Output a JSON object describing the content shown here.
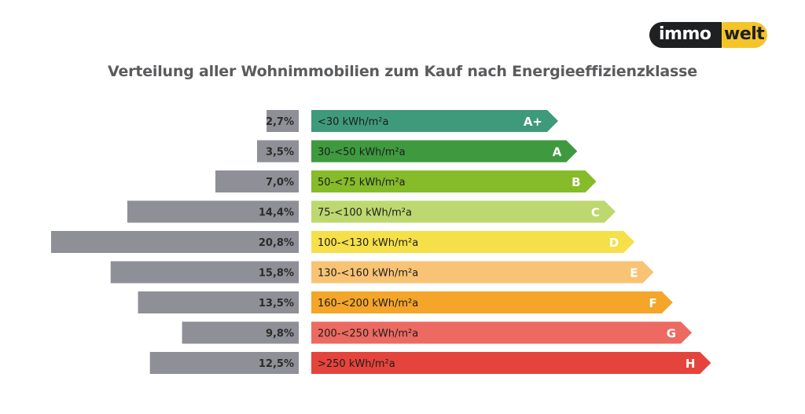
{
  "logo": {
    "part1": "immo",
    "part2": "welt"
  },
  "chart_data": {
    "type": "bar",
    "title": "Verteilung aller Wohnimmobilien zum Kauf nach Energieeffizienzklasse",
    "categories": [
      "A+",
      "A",
      "B",
      "C",
      "D",
      "E",
      "F",
      "G",
      "H"
    ],
    "ranges": [
      "<30 kWh/m²a",
      "30-<50 kWh/m²a",
      "50-<75 kWh/m²a",
      "75-<100 kWh/m²a",
      "100-<130 kWh/m²a",
      "130-<160 kWh/m²a",
      "160-<200 kWh/m²a",
      "200-<250 kWh/m²a",
      ">250 kWh/m²a"
    ],
    "values": [
      2.7,
      3.5,
      7.0,
      14.4,
      20.8,
      15.8,
      13.5,
      9.8,
      12.5
    ],
    "value_labels": [
      "2,7%",
      "3,5%",
      "7,0%",
      "14,4%",
      "20,8%",
      "15,8%",
      "13,5%",
      "9,8%",
      "12,5%"
    ],
    "unit": "%",
    "colors": {
      "value_bars": "#8f8f97",
      "classes": [
        "#3f9a7b",
        "#3f9a3f",
        "#86bb2a",
        "#bdd86f",
        "#f6e04a",
        "#f8c374",
        "#f4a52a",
        "#ec6a61",
        "#e5443c"
      ]
    }
  }
}
